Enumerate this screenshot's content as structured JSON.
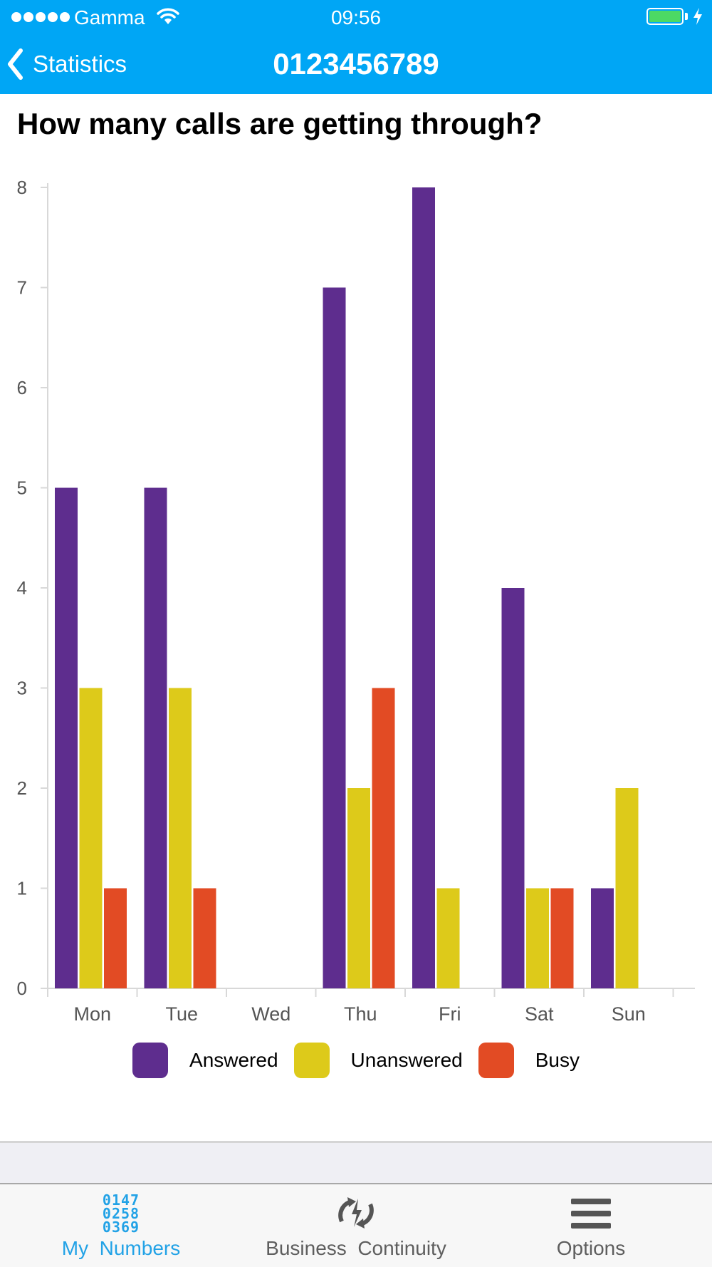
{
  "status_bar": {
    "carrier": "Gamma",
    "time": "09:56",
    "signal_icon": "signal-dots-icon",
    "wifi_icon": "wifi-icon",
    "battery_icon": "battery-icon",
    "battery_level": 1.0,
    "charging_icon": "charging-bolt-icon"
  },
  "nav": {
    "back_label": "Statistics",
    "title": "0123456789"
  },
  "page": {
    "heading": "How many calls are getting through?"
  },
  "legend": [
    {
      "label": "Answered",
      "color": "#5e2d8e"
    },
    {
      "label": "Unanswered",
      "color": "#ddca1a"
    },
    {
      "label": "Busy",
      "color": "#e24b24"
    }
  ],
  "chart_data": {
    "type": "bar",
    "categories": [
      "Mon",
      "Tue",
      "Wed",
      "Thu",
      "Fri",
      "Sat",
      "Sun"
    ],
    "series": [
      {
        "name": "Answered",
        "color": "#5e2d8e",
        "values": [
          5,
          5,
          0,
          7,
          8,
          4,
          1
        ]
      },
      {
        "name": "Unanswered",
        "color": "#ddca1a",
        "values": [
          3,
          3,
          0,
          2,
          1,
          1,
          2
        ]
      },
      {
        "name": "Busy",
        "color": "#e24b24",
        "values": [
          1,
          1,
          0,
          3,
          0,
          1,
          0
        ]
      }
    ],
    "y_ticks": [
      "0",
      "1",
      "2",
      "3",
      "4",
      "5",
      "6",
      "7",
      "8"
    ],
    "ylim": [
      0,
      8
    ],
    "grid": false,
    "legend_position": "bottom"
  },
  "tabbar": {
    "tabs": [
      {
        "label": "My  Numbers",
        "icon": "numbers-grid-icon",
        "icon_text": [
          "0147",
          "0258",
          "0369"
        ],
        "active": true
      },
      {
        "label": "Business  Continuity",
        "icon": "continuity-arrows-icon",
        "active": false
      },
      {
        "label": "Options",
        "icon": "menu-lines-icon",
        "active": false
      }
    ]
  }
}
